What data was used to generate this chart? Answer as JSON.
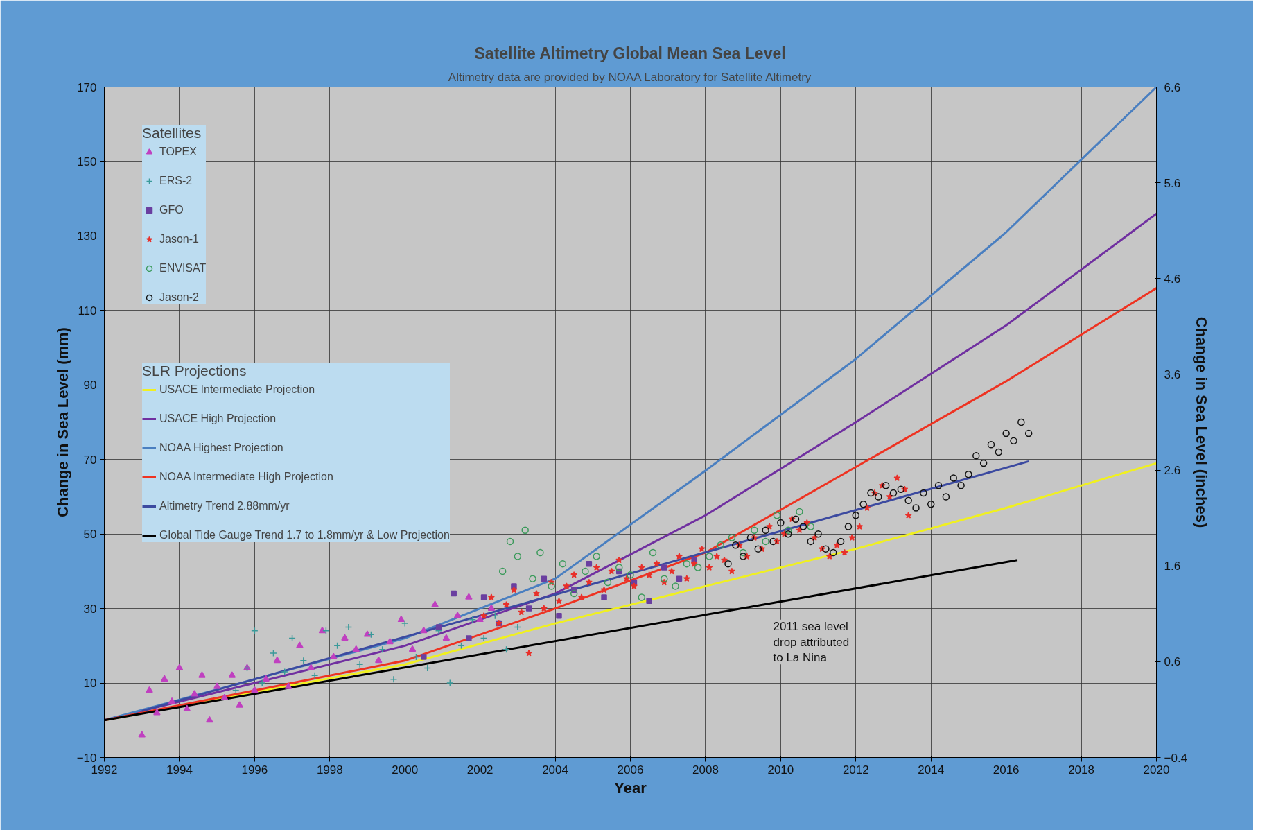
{
  "chart_data": {
    "type": "scatter",
    "title": "Satellite Altimetry Global Mean Sea Level",
    "subtitle": "Altimetry data are provided by NOAA Laboratory for Satellite Altimetry",
    "xlabel": "Year",
    "ylabel": "Change in Sea Level (mm)",
    "y2label": "Change in Sea Level (inches)",
    "legend_title": [
      "Satellites",
      "SLR Projections"
    ],
    "annotations": [
      "2011 sea level drop attributed to La Nina"
    ],
    "xlim": [
      1992,
      2020
    ],
    "xticks": [
      1992,
      1994,
      1996,
      1998,
      2000,
      2002,
      2004,
      2006,
      2008,
      2010,
      2012,
      2014,
      2016,
      2018,
      2020
    ],
    "ylim": [
      -10,
      170
    ],
    "yticks": [
      -10,
      10,
      30,
      50,
      70,
      90,
      110,
      130,
      150,
      170
    ],
    "y2lim": [
      -0.4,
      6.6
    ],
    "y2ticks": [
      -0.4,
      0.6,
      1.6,
      2.6,
      3.6,
      4.6,
      5.6,
      6.6
    ],
    "grid": true,
    "legend": "top left",
    "series": [
      {
        "name": "TOPEX",
        "marker": "triangle",
        "color": "#c040c0",
        "x": [
          1993.0,
          1993.2,
          1993.4,
          1993.6,
          1993.8,
          1994.0,
          1994.2,
          1994.4,
          1994.6,
          1994.8,
          1995.0,
          1995.2,
          1995.4,
          1995.6,
          1995.8,
          1996.0,
          1996.3,
          1996.6,
          1996.9,
          1997.2,
          1997.5,
          1997.8,
          1998.1,
          1998.4,
          1998.7,
          1999.0,
          1999.3,
          1999.6,
          1999.9,
          2000.2,
          2000.5,
          2000.8,
          2001.1,
          2001.4,
          2001.7,
          2002.0,
          2002.3
        ],
        "values": [
          -4,
          8,
          2,
          11,
          5,
          14,
          3,
          7,
          12,
          0,
          9,
          6,
          12,
          4,
          14,
          8,
          11,
          16,
          9,
          20,
          14,
          24,
          17,
          22,
          19,
          23,
          16,
          21,
          27,
          19,
          24,
          31,
          22,
          28,
          33,
          27,
          30
        ]
      },
      {
        "name": "ERS-2",
        "marker": "cross",
        "color": "#3a9a9a",
        "x": [
          1995.5,
          1995.8,
          1996.0,
          1996.2,
          1996.5,
          1996.8,
          1997.0,
          1997.3,
          1997.6,
          1997.9,
          1998.2,
          1998.5,
          1998.8,
          1999.1,
          1999.4,
          1999.7,
          2000.0,
          2000.3,
          2000.6,
          2000.9,
          2001.2,
          2001.5,
          2001.8,
          2002.1,
          2002.4,
          2002.7,
          2003.0
        ],
        "values": [
          8,
          14,
          24,
          10,
          18,
          13,
          22,
          16,
          12,
          24,
          20,
          25,
          15,
          23,
          19,
          11,
          26,
          17,
          14,
          24,
          10,
          20,
          27,
          22,
          28,
          19,
          25
        ]
      },
      {
        "name": "GFO",
        "marker": "square",
        "color": "#6a3fa0",
        "x": [
          2000.5,
          2000.9,
          2001.3,
          2001.7,
          2002.1,
          2002.5,
          2002.9,
          2003.3,
          2003.7,
          2004.1,
          2004.5,
          2004.9,
          2005.3,
          2005.7,
          2006.1,
          2006.5,
          2006.9,
          2007.3,
          2007.7
        ],
        "values": [
          17,
          25,
          34,
          22,
          33,
          26,
          36,
          30,
          38,
          28,
          35,
          42,
          33,
          40,
          37,
          32,
          41,
          38,
          43
        ]
      },
      {
        "name": "Jason-1",
        "marker": "star",
        "color": "#e8302a",
        "x": [
          2002.1,
          2002.3,
          2002.5,
          2002.7,
          2002.9,
          2003.1,
          2003.3,
          2003.5,
          2003.7,
          2003.9,
          2004.1,
          2004.3,
          2004.5,
          2004.7,
          2004.9,
          2005.1,
          2005.3,
          2005.5,
          2005.7,
          2005.9,
          2006.1,
          2006.3,
          2006.5,
          2006.7,
          2006.9,
          2007.1,
          2007.3,
          2007.5,
          2007.7,
          2007.9,
          2008.1,
          2008.3,
          2008.5,
          2008.7,
          2008.9,
          2009.1,
          2009.3,
          2009.5,
          2009.7,
          2009.9,
          2010.1,
          2010.3,
          2010.5,
          2010.7,
          2010.9,
          2011.1,
          2011.3,
          2011.5,
          2011.7,
          2011.9,
          2012.1,
          2012.3,
          2012.5,
          2012.7,
          2012.9,
          2013.1,
          2013.3,
          2013.4
        ],
        "values": [
          28,
          33,
          26,
          31,
          35,
          29,
          18,
          34,
          30,
          37,
          32,
          36,
          39,
          33,
          37,
          41,
          35,
          40,
          43,
          38,
          36,
          41,
          39,
          42,
          37,
          40,
          44,
          38,
          42,
          46,
          41,
          44,
          43,
          40,
          47,
          44,
          49,
          46,
          52,
          48,
          50,
          54,
          51,
          53,
          49,
          46,
          44,
          47,
          45,
          49,
          52,
          57,
          61,
          63,
          60,
          65,
          62,
          55
        ]
      },
      {
        "name": "ENVISAT",
        "marker": "circle",
        "color": "#3a9a5a",
        "x": [
          2002.6,
          2002.8,
          2003.0,
          2003.2,
          2003.4,
          2003.6,
          2003.9,
          2004.2,
          2004.5,
          2004.8,
          2005.1,
          2005.4,
          2005.7,
          2006.0,
          2006.3,
          2006.6,
          2006.9,
          2007.2,
          2007.5,
          2007.8,
          2008.1,
          2008.4,
          2008.7,
          2009.0,
          2009.3,
          2009.6,
          2009.9,
          2010.2,
          2010.5,
          2010.8
        ],
        "values": [
          40,
          48,
          44,
          51,
          38,
          45,
          36,
          42,
          34,
          40,
          44,
          37,
          41,
          39,
          33,
          45,
          38,
          36,
          42,
          41,
          44,
          47,
          49,
          45,
          51,
          48,
          55,
          51,
          56,
          52
        ]
      },
      {
        "name": "Jason-2",
        "marker": "circle",
        "color": "#111111",
        "x": [
          2008.6,
          2008.8,
          2009.0,
          2009.2,
          2009.4,
          2009.6,
          2009.8,
          2010.0,
          2010.2,
          2010.4,
          2010.6,
          2010.8,
          2011.0,
          2011.2,
          2011.4,
          2011.6,
          2011.8,
          2012.0,
          2012.2,
          2012.4,
          2012.6,
          2012.8,
          2013.0,
          2013.2,
          2013.4,
          2013.6,
          2013.8,
          2014.0,
          2014.2,
          2014.4,
          2014.6,
          2014.8,
          2015.0,
          2015.2,
          2015.4,
          2015.6,
          2015.8,
          2016.0,
          2016.2,
          2016.4,
          2016.6
        ],
        "values": [
          42,
          47,
          44,
          49,
          46,
          51,
          48,
          53,
          50,
          54,
          52,
          48,
          50,
          46,
          45,
          48,
          52,
          55,
          58,
          61,
          60,
          63,
          61,
          62,
          59,
          57,
          61,
          58,
          63,
          60,
          65,
          63,
          66,
          71,
          69,
          74,
          72,
          77,
          75,
          80,
          77
        ]
      },
      {
        "name": "USACE Intermediate Projection",
        "type": "line",
        "color": "#f0f020",
        "x": [
          1992,
          2000,
          2004,
          2008,
          2012,
          2016,
          2020
        ],
        "values": [
          0,
          15,
          26,
          36,
          46,
          57,
          69
        ]
      },
      {
        "name": "USACE High Projection",
        "type": "line",
        "color": "#7030a0",
        "x": [
          1992,
          2000,
          2004,
          2008,
          2012,
          2016,
          2020
        ],
        "values": [
          0,
          20,
          34,
          55,
          80,
          106,
          136
        ]
      },
      {
        "name": "NOAA Highest Projection",
        "type": "line",
        "color": "#4a7fc0",
        "x": [
          1992,
          2000,
          2004,
          2008,
          2012,
          2016,
          2020
        ],
        "values": [
          0,
          22,
          38,
          67,
          97,
          131,
          170
        ]
      },
      {
        "name": "NOAA Intermediate High Projection",
        "type": "line",
        "color": "#ee3322",
        "x": [
          1992,
          2000,
          2004,
          2008,
          2012,
          2016,
          2020
        ],
        "values": [
          0,
          16,
          30,
          45,
          68,
          91,
          116
        ]
      },
      {
        "name": "Altimetry Trend 2.88mm/yr",
        "type": "line",
        "color": "#3c4aa0",
        "x": [
          1993,
          2016.6
        ],
        "values": [
          2.5,
          69.5
        ]
      },
      {
        "name": "Global Tide Gauge Trend 1.7 to 1.8mm/yr & Low Projection",
        "type": "line",
        "color": "#000000",
        "x": [
          1992,
          2016.3
        ],
        "values": [
          0,
          43
        ]
      }
    ]
  }
}
